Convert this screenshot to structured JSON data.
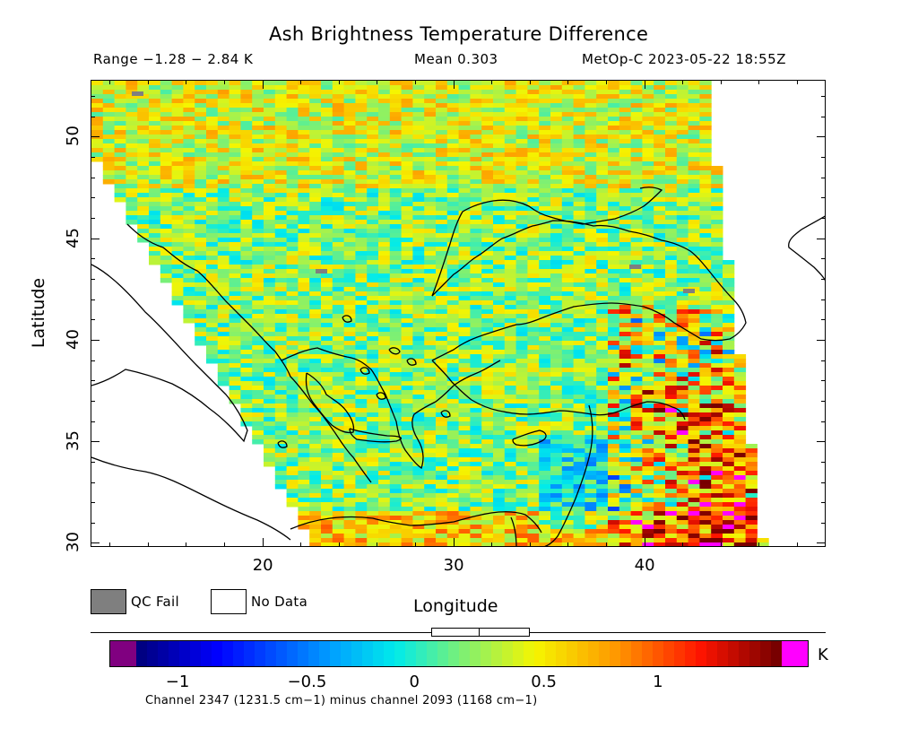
{
  "header": {
    "title": "Ash Brightness Temperature Difference",
    "range": "Range −1.28 − 2.84 K",
    "mean": "Mean 0.303",
    "satellite_time": "MetOp-C 2023-05-22 18:55Z"
  },
  "map": {
    "x_axis_label": "Longitude",
    "y_axis_label": "Latitude",
    "x_range": [
      11,
      49.5
    ],
    "y_range": [
      29.8,
      52.8
    ],
    "x_ticks": [
      20,
      30,
      40
    ],
    "y_ticks": [
      30,
      35,
      40,
      45,
      50
    ],
    "x_tick_labels": [
      "20",
      "30",
      "40"
    ],
    "y_tick_labels": [
      "30",
      "35",
      "40",
      "45",
      "50"
    ]
  },
  "legend": {
    "qc_fail_label": "QC Fail",
    "qc_fail_color": "#7f7f7f",
    "no_data_label": "No Data",
    "no_data_color": "#ffffff"
  },
  "colorbar": {
    "range": [
      -1.15,
      1.5
    ],
    "tick_values": [
      -1,
      -0.5,
      0,
      0.5,
      1
    ],
    "tick_labels": [
      "−1",
      "−0.5",
      "0",
      "0.5",
      "1"
    ],
    "unit": "K",
    "under_color": "#800080",
    "over_color": "#ff00ff",
    "caption": "Channel 2347 (1231.5 cm−1) minus channel 2093 (1168 cm−1)"
  },
  "colors": {
    "coastline": "#000000",
    "frame": "#000000"
  }
}
